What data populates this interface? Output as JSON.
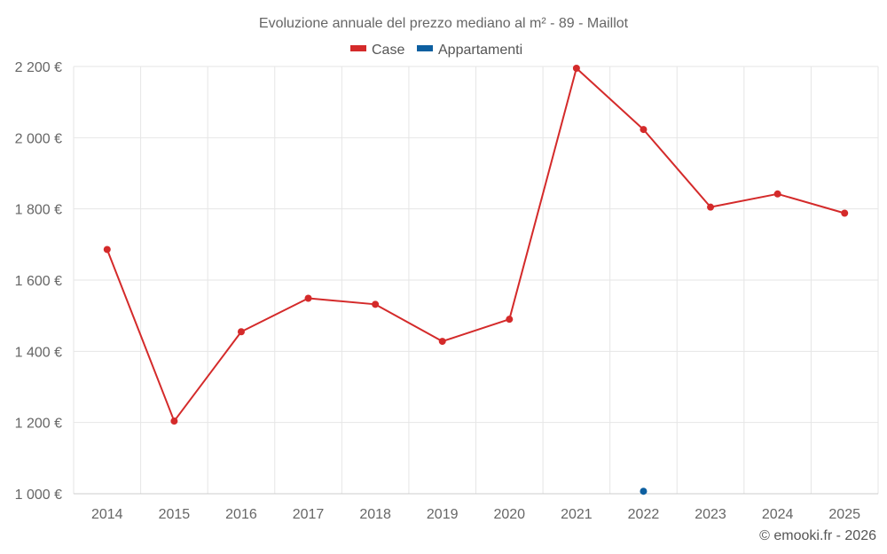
{
  "chart_data": {
    "type": "line",
    "title": "Evoluzione annuale del prezzo mediano al m² - 89 - Maillot",
    "categories": [
      "2014",
      "2015",
      "2016",
      "2017",
      "2018",
      "2019",
      "2020",
      "2021",
      "2022",
      "2023",
      "2024",
      "2025"
    ],
    "series": [
      {
        "name": "Case",
        "color": "#d42a2a",
        "values": [
          1686,
          1204,
          1455,
          1549,
          1532,
          1428,
          1490,
          2195,
          2023,
          1805,
          1842,
          1788
        ]
      },
      {
        "name": "Appartamenti",
        "color": "#0d5fa0",
        "values": [
          null,
          null,
          null,
          null,
          null,
          null,
          null,
          null,
          1007,
          null,
          null,
          null
        ]
      }
    ],
    "ylim": [
      1000,
      2200
    ],
    "yticks": [
      1000,
      1200,
      1400,
      1600,
      1800,
      2000,
      2200
    ],
    "ytick_labels": [
      "1 000 €",
      "1 200 €",
      "1 400 €",
      "1 600 €",
      "1 800 €",
      "2 000 €",
      "2 200 €"
    ],
    "legend_position": "top-center",
    "grid": true
  },
  "credit": "© emooki.fr - 2026"
}
